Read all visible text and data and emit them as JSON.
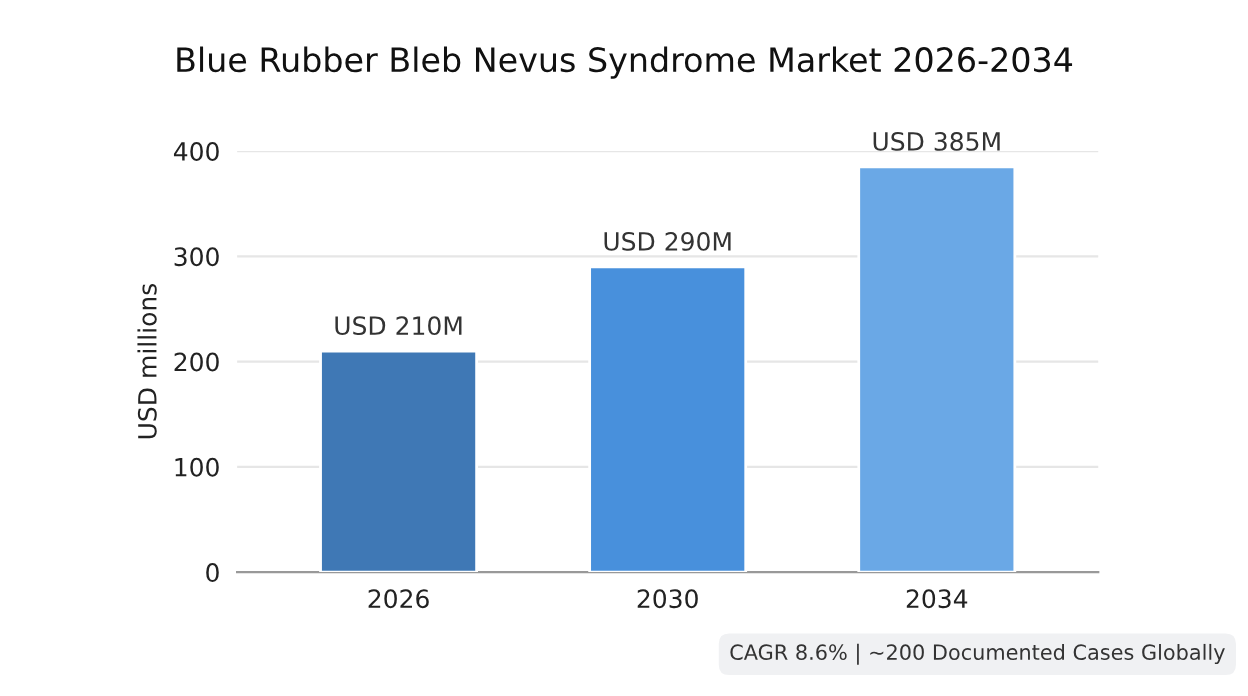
{
  "chart_data": {
    "type": "bar",
    "title": "Blue Rubber Bleb Nevus Syndrome Market 2026-2034",
    "ylabel": "USD millions",
    "categories": [
      "2026",
      "2030",
      "2034"
    ],
    "values": [
      210,
      290,
      385
    ],
    "colors": [
      "#3f78b5",
      "#4890dc",
      "#6aa8e6"
    ],
    "value_labels": [
      "USD 210M",
      "USD 290M",
      "USD 385M"
    ],
    "ylim": [
      0,
      400
    ],
    "yticks": [
      0,
      100,
      200,
      300,
      400
    ],
    "grid": "y",
    "annotations": [
      "CAGR 8.6% | ~200 Documented Cases Globally"
    ]
  }
}
